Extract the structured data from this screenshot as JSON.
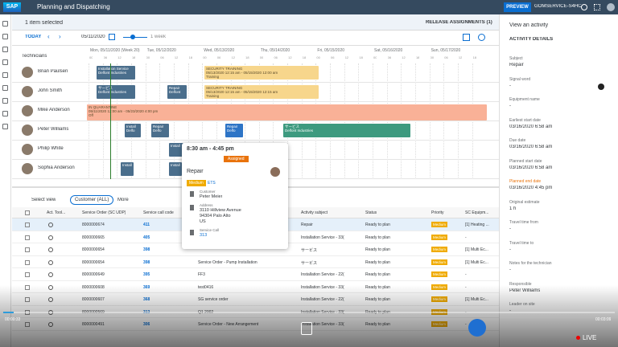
{
  "header": {
    "logo": "SAP",
    "title": "Planning and Dispatching",
    "preview": "PREVIEW",
    "tenant": "GOMSERVICE-S4HC"
  },
  "selection": {
    "text": "1 item selected",
    "release": "RELEASE ASSIGNMENTS (1)"
  },
  "toolbar": {
    "today": "TODAY",
    "date": "05/11/2020",
    "range": "1 week"
  },
  "gantt": {
    "label": "Technicians",
    "days": [
      "Mon, 05/11/2020 (Week 20)",
      "Tue, 05/12/2020",
      "Wed, 05/13/2020",
      "Thu, 05/14/2020",
      "Fri, 05/15/2020",
      "Sat, 05/16/2020",
      "Sun, 05/17/2020"
    ],
    "hours": [
      "00",
      "06",
      "12",
      "18"
    ],
    "technicians": [
      {
        "name": "Brian Paulsen",
        "blocks": [
          {
            "lines": [
              "Installation Service",
              "Delfont Industries"
            ]
          },
          {
            "lines": [
              "SECURITY TRAINING",
              "05/13/2020 12:15 am - 05/15/2020 12:00 am",
              "Training"
            ]
          }
        ]
      },
      {
        "name": "John Smith",
        "blocks": [
          {
            "lines": [
              "サービス",
              "Delfont Industries"
            ]
          },
          {
            "lines": [
              "Repair",
              "Delfont"
            ]
          },
          {
            "lines": [
              "SECURITY TRAINING",
              "05/13/2020 12:15 am - 05/15/2020 12:15 am",
              "Training"
            ]
          }
        ]
      },
      {
        "name": "Mike Anderson",
        "blocks": [
          {
            "lines": [
              "IN QUARANTINE",
              "05/11/2020 12:00 am - 05/23/2020 4:00 pm",
              "Off"
            ]
          }
        ]
      },
      {
        "name": "Peter Williams",
        "blocks": [
          {
            "lines": [
              "Install",
              "Delfo"
            ]
          },
          {
            "lines": [
              "Repair",
              "Delfo"
            ]
          },
          {
            "lines": [
              "Repair",
              "Delfo"
            ]
          },
          {
            "lines": [
              "サービス",
              "Delfont Industries"
            ]
          }
        ]
      },
      {
        "name": "Philip White",
        "blocks": [
          {
            "lines": [
              "Install"
            ]
          }
        ]
      },
      {
        "name": "Sophia Anderson",
        "blocks": [
          {
            "lines": [
              "Install"
            ]
          },
          {
            "lines": [
              "Install"
            ]
          }
        ]
      }
    ]
  },
  "popover": {
    "time": "8:30 am - 4:45 pm",
    "status": "Assigned",
    "title": "Repair",
    "priority": "Medium",
    "code": "ETS",
    "fields": [
      {
        "label": "Customer",
        "lines": [
          "Peter Meier"
        ]
      },
      {
        "label": "Address",
        "lines": [
          "3110 Hillview Avenue",
          "94304 Palo Alto",
          "US"
        ]
      },
      {
        "label": "Service Call",
        "lines": [
          "313"
        ]
      }
    ]
  },
  "filters": {
    "select_view": "Select view",
    "customer": "Customer (ALL)",
    "more": "More"
  },
  "table": {
    "columns": [
      "Act. Tool...",
      "Service Order (SC UDP)",
      "Service call code",
      "Activity subject",
      "Status",
      "Priority",
      "SC Equipm..."
    ],
    "rows": [
      [
        "8000000674",
        "411",
        null,
        "Repair",
        "Ready to plan",
        "Medium",
        "[1] Heating ..."
      ],
      [
        "8000000665",
        "405",
        null,
        "Installation Service - 33(",
        "Ready to plan",
        "Medium",
        "-"
      ],
      [
        "8000000654",
        "398",
        null,
        "サービス",
        "Ready to plan",
        "Medium",
        "[1] Multi Ec..."
      ],
      [
        "8000000654",
        "398",
        "Service Order - Pump Installation",
        "サービス",
        "Ready to plan",
        "Medium",
        "[1] Multi Ec..."
      ],
      [
        "8000000649",
        "395",
        "FF3",
        "Installation Service - 22(",
        "Ready to plan",
        "Medium",
        "-"
      ],
      [
        "8000000608",
        "369",
        "test0416",
        "Installation Service - 33(",
        "Ready to plan",
        "Medium",
        "-"
      ],
      [
        "8000000607",
        "368",
        "SG service order",
        "Installation Service - 22(",
        "Ready to plan",
        "Medium",
        "[1] Multi Ec..."
      ],
      [
        "8000000569",
        "313",
        "Q1 2002",
        "Installation Service - 33(",
        "Ready to plan",
        "Medium",
        "-"
      ],
      [
        "8000000491",
        "306",
        "Service Order - New Arrangement",
        "Installation Service - 33(",
        "Ready to plan",
        "Medium",
        "-"
      ]
    ]
  },
  "details": {
    "title": "View an activity",
    "section": "ACTIVITY DETAILS",
    "fields": [
      {
        "label": "Subject",
        "value": "Repair"
      },
      {
        "label": "Signal word",
        "value": "-"
      },
      {
        "label": "Equipment name",
        "value": "-"
      },
      {
        "label": "Earliest start date",
        "value": "03/16/2020 6:58 am"
      },
      {
        "label": "Due date",
        "value": "03/16/2020 6:58 am"
      },
      {
        "label": "Planned start date",
        "value": "03/16/2020 6:58 am"
      },
      {
        "label": "Planned end date",
        "value": "03/16/2020 4:45 pm"
      },
      {
        "label": "Original estimate",
        "value": "1 h"
      },
      {
        "label": "Travel time from",
        "value": "-"
      },
      {
        "label": "Travel time to",
        "value": "-"
      },
      {
        "label": "Notes for the technician",
        "value": "-"
      },
      {
        "label": "Responsible",
        "value": "Peter Williams"
      },
      {
        "label": "Leader on site",
        "value": "-"
      }
    ]
  },
  "video": {
    "elapsed": "00:00:33",
    "total": "00:03:09",
    "live": "LIVE"
  }
}
